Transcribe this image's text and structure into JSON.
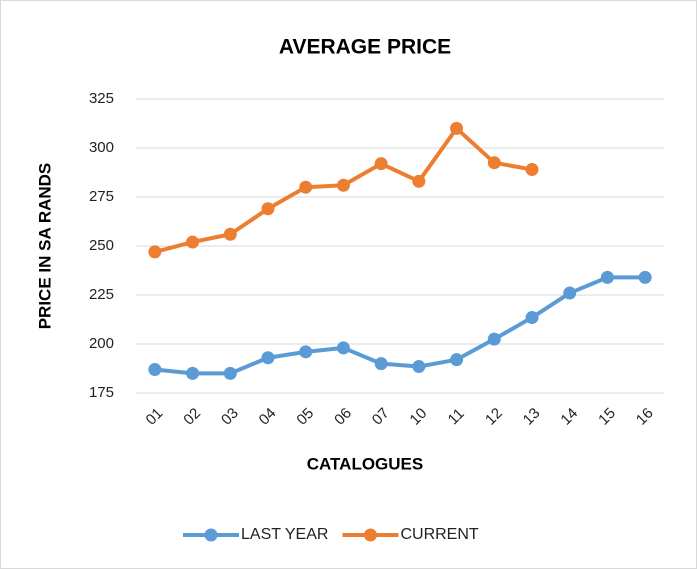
{
  "chart_data": {
    "type": "line",
    "title": "AVERAGE PRICE",
    "x_label": "CATALOGUES",
    "y_label": "PRICE IN SA RANDS",
    "categories": [
      "01",
      "02",
      "03",
      "04",
      "05",
      "06",
      "07",
      "10",
      "11",
      "12",
      "13",
      "14",
      "15",
      "16"
    ],
    "series": [
      {
        "name": "LAST YEAR",
        "color": "#5b9bd5",
        "values": [
          187,
          185,
          185,
          193,
          196,
          198,
          190,
          188.5,
          192,
          202.5,
          213.5,
          226,
          234,
          234
        ]
      },
      {
        "name": "CURRENT",
        "color": "#ed7d31",
        "values": [
          247,
          252,
          256,
          269,
          280,
          281,
          292,
          283,
          310,
          292.5,
          289,
          null,
          null,
          null
        ]
      }
    ],
    "ylim": [
      175,
      325
    ],
    "yticks": [
      175,
      200,
      225,
      250,
      275,
      300,
      325
    ],
    "grid": true,
    "legend": "bottom"
  }
}
